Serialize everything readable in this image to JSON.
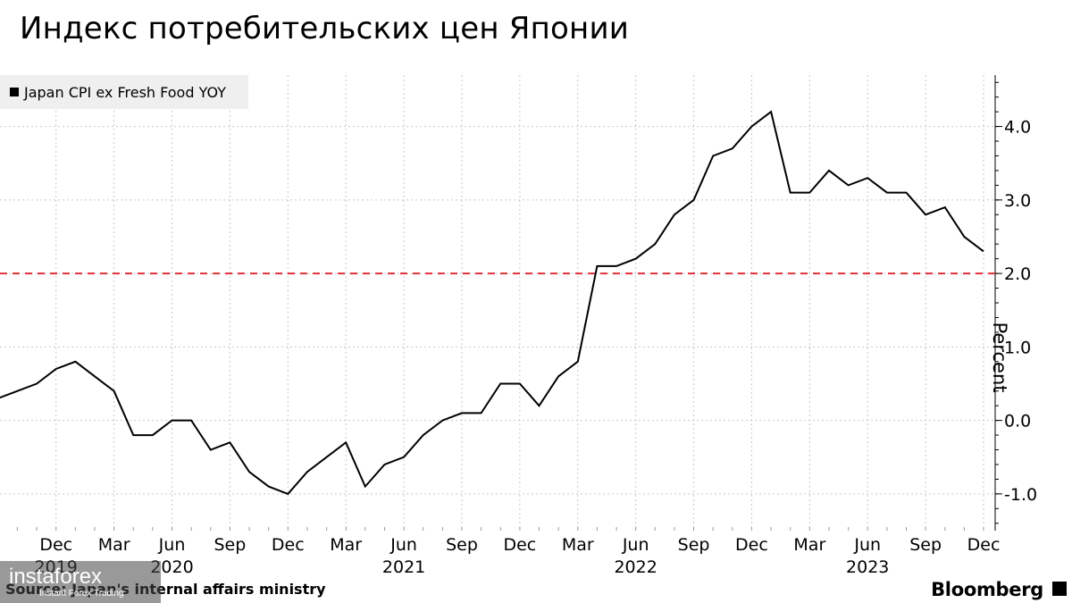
{
  "title": "Индекс потребительских цен Японии",
  "source_label": "Source: Japan's internal affairs ministry",
  "brand": "Bloomberg",
  "watermark": {
    "text": "instaforex",
    "sub": "Instant Forex Trading"
  },
  "chart_data": {
    "type": "line",
    "ylabel": "Percent",
    "ylim": [
      -1.5,
      4.7
    ],
    "yticks": [
      -1.0,
      0.0,
      1.0,
      2.0,
      3.0,
      4.0
    ],
    "ytick_labels": [
      "-1.0",
      "0.0",
      "1.0",
      "2.0",
      "3.0",
      "4.0"
    ],
    "grid": true,
    "legend_position": "top-left",
    "reference_line": {
      "value": 2.0,
      "color": "#e0303a",
      "style": "dashed"
    },
    "x_month_labels": [
      "Dec",
      "Mar",
      "Jun",
      "Sep",
      "Dec",
      "Mar",
      "Jun",
      "Sep",
      "Dec",
      "Mar",
      "Jun",
      "Sep",
      "Dec",
      "Mar",
      "Jun",
      "Sep",
      "Dec"
    ],
    "x_month_label_dates": [
      "2019-12",
      "2020-03",
      "2020-06",
      "2020-09",
      "2020-12",
      "2021-03",
      "2021-06",
      "2021-09",
      "2021-12",
      "2022-03",
      "2022-06",
      "2022-09",
      "2022-12",
      "2023-03",
      "2023-06",
      "2023-09",
      "2023-12"
    ],
    "x_year_labels": [
      "2019",
      "2020",
      "2021",
      "2022",
      "2023"
    ],
    "x_year_label_dates": [
      "2019-12",
      "2020-06",
      "2021-06",
      "2022-06",
      "2023-06"
    ],
    "xlim": [
      "2019-09",
      "2024-01"
    ],
    "series": [
      {
        "name": "Japan CPI ex Fresh Food YOY",
        "color": "#000000",
        "x": [
          "2019-09",
          "2019-10",
          "2019-11",
          "2019-12",
          "2020-01",
          "2020-02",
          "2020-03",
          "2020-04",
          "2020-05",
          "2020-06",
          "2020-07",
          "2020-08",
          "2020-09",
          "2020-10",
          "2020-11",
          "2020-12",
          "2021-01",
          "2021-02",
          "2021-03",
          "2021-04",
          "2021-05",
          "2021-06",
          "2021-07",
          "2021-08",
          "2021-09",
          "2021-10",
          "2021-11",
          "2021-12",
          "2022-01",
          "2022-02",
          "2022-03",
          "2022-04",
          "2022-05",
          "2022-06",
          "2022-07",
          "2022-08",
          "2022-09",
          "2022-10",
          "2022-11",
          "2022-12",
          "2023-01",
          "2023-02",
          "2023-03",
          "2023-04",
          "2023-05",
          "2023-06",
          "2023-07",
          "2023-08",
          "2023-09",
          "2023-10",
          "2023-11",
          "2023-12"
        ],
        "values": [
          0.3,
          0.4,
          0.5,
          0.7,
          0.8,
          0.6,
          0.4,
          -0.2,
          -0.2,
          0.0,
          0.0,
          -0.4,
          -0.3,
          -0.7,
          -0.9,
          -1.0,
          -0.7,
          -0.5,
          -0.3,
          -0.9,
          -0.6,
          -0.5,
          -0.2,
          0.0,
          0.1,
          0.1,
          0.5,
          0.5,
          0.2,
          0.6,
          0.8,
          2.1,
          2.1,
          2.2,
          2.4,
          2.8,
          3.0,
          3.6,
          3.7,
          4.0,
          4.2,
          3.1,
          3.1,
          3.4,
          3.2,
          3.3,
          3.1,
          3.1,
          2.8,
          2.9,
          2.5,
          2.3
        ]
      }
    ]
  }
}
